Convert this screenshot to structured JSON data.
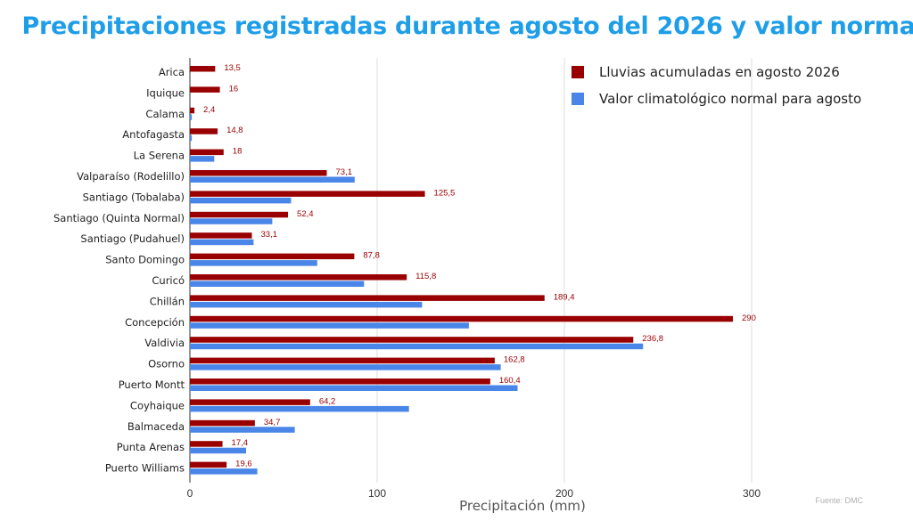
{
  "title": "Precipitaciones registradas durante agosto del 2026 y valor normal",
  "source": "Fuente: DMC",
  "colors": {
    "title": "#1f9ee8",
    "series1": "#990000",
    "series2": "#4a86e8",
    "label": "#990000"
  },
  "chart_data": {
    "type": "bar",
    "orientation": "horizontal",
    "xlabel": "Precipitación (mm)",
    "ylabel": "",
    "xlim": [
      0,
      350
    ],
    "xticks": [
      0,
      100,
      200,
      300
    ],
    "grid": true,
    "legend_position": "top-right",
    "categories": [
      "Arica",
      "Iquique",
      "Calama",
      "Antofagasta",
      "La Serena",
      "Valparaíso (Rodelillo)",
      "Santiago (Tobalaba)",
      "Santiago (Quinta Normal)",
      "Santiago (Pudahuel)",
      "Santo Domingo",
      "Curicó",
      "Chillán",
      "Concepción",
      "Valdivia",
      "Osorno",
      "Puerto Montt",
      "Coyhaique",
      "Balmaceda",
      "Punta Arenas",
      "Puerto Williams"
    ],
    "series": [
      {
        "name": "Lluvias acumuladas en agosto 2026",
        "values": [
          13.5,
          16,
          2.4,
          14.8,
          18,
          73.1,
          125.5,
          52.4,
          33.1,
          87.8,
          115.8,
          189.4,
          290,
          236.8,
          162.8,
          160.4,
          64.2,
          34.7,
          17.4,
          19.6
        ],
        "data_labels": [
          "13,5",
          "16",
          "2,4",
          "14,8",
          "18",
          "73,1",
          "125,5",
          "52,4",
          "33,1",
          "87,8",
          "115,8",
          "189,4",
          "290",
          "236,8",
          "162,8",
          "160,4",
          "64,2",
          "34,7",
          "17,4",
          "19,6"
        ]
      },
      {
        "name": "Valor climatológico normal para agosto",
        "values": [
          0,
          0,
          1,
          1,
          13,
          88,
          54,
          44,
          34,
          68,
          93,
          124,
          149,
          242,
          166,
          175,
          117,
          56,
          30,
          36
        ]
      }
    ]
  }
}
